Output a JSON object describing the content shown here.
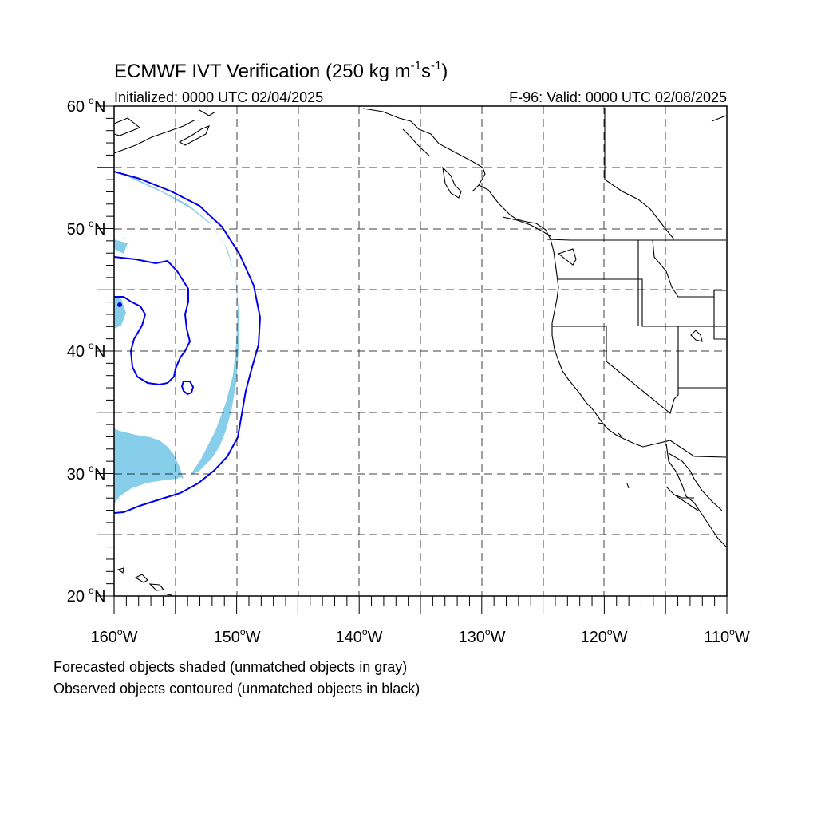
{
  "title": {
    "main": "ECMWF IVT Verification (250 kg m",
    "exp1": "-1",
    "mid": "s",
    "exp2": "-1",
    "close": ")"
  },
  "subtitle_left": "Initialized: 0000 UTC 02/04/2025",
  "subtitle_right": "F-96: Valid: 0000 UTC 02/08/2025",
  "lat_labels": [
    {
      "deg": "60",
      "hem": "N"
    },
    {
      "deg": "50",
      "hem": "N"
    },
    {
      "deg": "40",
      "hem": "N"
    },
    {
      "deg": "30",
      "hem": "N"
    },
    {
      "deg": "20",
      "hem": "N"
    }
  ],
  "lon_labels": [
    {
      "deg": "160",
      "hem": "W"
    },
    {
      "deg": "150",
      "hem": "W"
    },
    {
      "deg": "140",
      "hem": "W"
    },
    {
      "deg": "130",
      "hem": "W"
    },
    {
      "deg": "120",
      "hem": "W"
    },
    {
      "deg": "110",
      "hem": "W"
    }
  ],
  "footnotes": [
    "Forecasted objects shaded (unmatched objects in gray)",
    "Observed objects contoured (unmatched objects in black)"
  ],
  "colors": {
    "forecast_fill": "#87CEEB",
    "observed_contour": "#0000ee",
    "coast": "#000000",
    "grid": "#000000"
  },
  "map_extent": {
    "lon": [
      -160,
      -110
    ],
    "lat": [
      20,
      60
    ]
  }
}
